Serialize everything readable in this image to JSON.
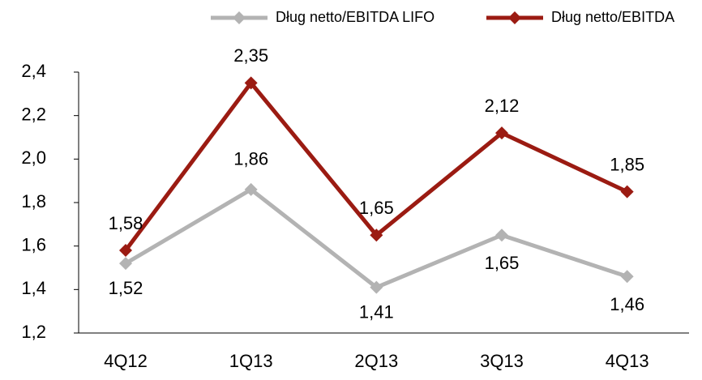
{
  "chart_data": {
    "type": "line",
    "categories": [
      "4Q12",
      "1Q13",
      "2Q13",
      "3Q13",
      "4Q13"
    ],
    "series": [
      {
        "name": "Dług netto/EBITDA LIFO",
        "color": "#b3b3b3",
        "values": [
          1.52,
          1.86,
          1.41,
          1.65,
          1.46
        ],
        "value_labels": [
          "1,52",
          "1,86",
          "1,41",
          "1,65",
          "1,46"
        ]
      },
      {
        "name": "Dług netto/EBITDA",
        "color": "#9b1b12",
        "values": [
          1.58,
          2.35,
          1.65,
          2.12,
          1.85
        ],
        "value_labels": [
          "1,58",
          "2,35",
          "1,65",
          "2,12",
          "1,85"
        ]
      }
    ],
    "ylim": [
      1.2,
      2.4
    ],
    "yticks": [
      {
        "value": 1.2,
        "label": "1,2"
      },
      {
        "value": 1.4,
        "label": "1,4"
      },
      {
        "value": 1.6,
        "label": "1,6"
      },
      {
        "value": 1.8,
        "label": "1,8"
      },
      {
        "value": 2.0,
        "label": "2,0"
      },
      {
        "value": 2.2,
        "label": "2,2"
      },
      {
        "value": 2.4,
        "label": "2,4"
      }
    ],
    "legend": "top"
  }
}
